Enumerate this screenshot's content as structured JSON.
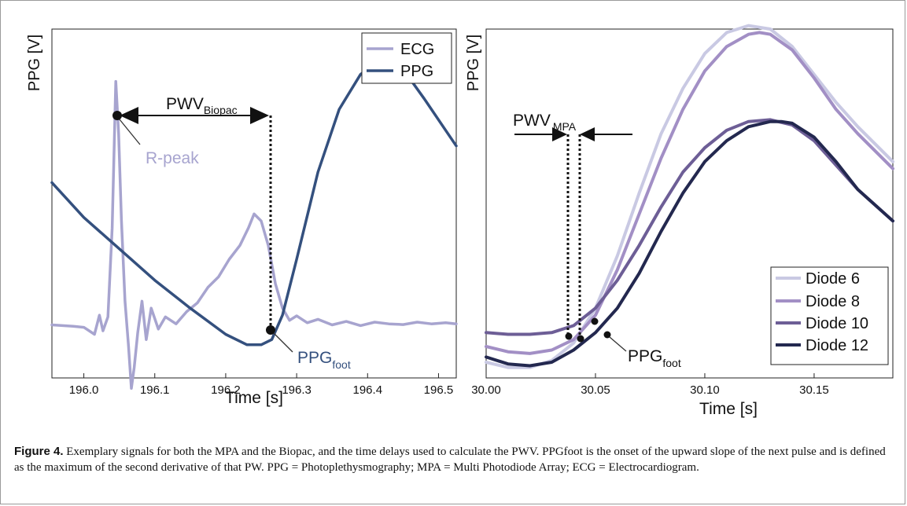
{
  "figure": {
    "caption_label": "Figure 4.",
    "caption_text": "Exemplary signals for both the MPA and the Biopac, and the time delays used to calculate the PWV. PPGfoot is the onset of the upward slope of the next pulse and is defined as the maximum of the second derivative of that PW. PPG = Photoplethysmography; MPA = Multi Photodiode Array; ECG = Electrocardiogram."
  },
  "chart_data": [
    {
      "type": "line",
      "ylabel": "PPG [V]",
      "xlabel": "Time [s]",
      "xlim": [
        195.955,
        196.525
      ],
      "ylim": [
        0,
        1
      ],
      "xticks": [
        "196.0",
        "196.1",
        "196.2",
        "196.3",
        "196.4",
        "196.5"
      ],
      "xtick_values": [
        196.0,
        196.1,
        196.2,
        196.3,
        196.4,
        196.5
      ],
      "legend_position": "top-right",
      "colors": {
        "ECG": "#a7a4cf",
        "PPG": "#34507e"
      },
      "series": [
        {
          "name": "ECG",
          "x": [
            195.955,
            195.985,
            196.0,
            196.015,
            196.022,
            196.027,
            196.034,
            196.04,
            196.045,
            196.049,
            196.053,
            196.058,
            196.063,
            196.067,
            196.071,
            196.076,
            196.082,
            196.088,
            196.095,
            196.105,
            196.115,
            196.13,
            196.145,
            196.16,
            196.175,
            196.19,
            196.205,
            196.22,
            196.232,
            196.24,
            196.25,
            196.26,
            196.27,
            196.28,
            196.29,
            196.3,
            196.315,
            196.33,
            196.35,
            196.37,
            196.39,
            196.41,
            196.43,
            196.45,
            196.47,
            196.49,
            196.51,
            196.525
          ],
          "y": [
            0.152,
            0.148,
            0.145,
            0.125,
            0.18,
            0.135,
            0.175,
            0.43,
            0.85,
            0.7,
            0.45,
            0.22,
            0.09,
            -0.03,
            0.03,
            0.13,
            0.22,
            0.11,
            0.2,
            0.14,
            0.175,
            0.155,
            0.19,
            0.215,
            0.26,
            0.29,
            0.34,
            0.38,
            0.43,
            0.47,
            0.45,
            0.38,
            0.27,
            0.2,
            0.165,
            0.178,
            0.158,
            0.168,
            0.152,
            0.162,
            0.15,
            0.16,
            0.155,
            0.153,
            0.16,
            0.155,
            0.158,
            0.155
          ]
        },
        {
          "name": "PPG",
          "x": [
            195.955,
            196.0,
            196.05,
            196.1,
            196.15,
            196.2,
            196.23,
            196.25,
            196.265,
            196.28,
            196.3,
            196.33,
            196.36,
            196.39,
            196.41,
            196.43,
            196.45,
            196.48,
            196.51,
            196.525
          ],
          "y": [
            0.56,
            0.46,
            0.37,
            0.28,
            0.2,
            0.125,
            0.095,
            0.095,
            0.11,
            0.18,
            0.34,
            0.59,
            0.77,
            0.87,
            0.9,
            0.905,
            0.885,
            0.8,
            0.71,
            0.665
          ]
        }
      ],
      "annotations": [
        {
          "text": "PWV",
          "subscript": "Biopac"
        },
        {
          "text": "R-peak",
          "color": "#a7a4cf"
        },
        {
          "text": "PPG",
          "subscript": "foot",
          "color": "#34507e"
        }
      ]
    },
    {
      "type": "line",
      "ylabel": "PPG [V]",
      "xlabel": "Time [s]",
      "xlim": [
        30.0,
        30.186
      ],
      "ylim": [
        0,
        1
      ],
      "xticks": [
        "30.00",
        "30.05",
        "30.10",
        "30.15"
      ],
      "xtick_values": [
        30.0,
        30.05,
        30.1,
        30.15
      ],
      "legend_position": "bottom-right",
      "colors": {
        "Diode 6": "#c9c9e3",
        "Diode 8": "#a28fc5",
        "Diode 10": "#6d5e96",
        "Diode 12": "#23284f"
      },
      "series": [
        {
          "name": "Diode 6",
          "x": [
            30.0,
            30.01,
            30.02,
            30.03,
            30.04,
            30.05,
            30.06,
            30.07,
            30.08,
            30.09,
            30.1,
            30.11,
            30.12,
            30.13,
            30.14,
            30.15,
            30.16,
            30.17,
            30.186
          ],
          "y": [
            0.045,
            0.03,
            0.03,
            0.05,
            0.1,
            0.2,
            0.35,
            0.53,
            0.7,
            0.83,
            0.93,
            0.99,
            1.01,
            1.0,
            0.95,
            0.87,
            0.79,
            0.72,
            0.62
          ]
        },
        {
          "name": "Diode 8",
          "x": [
            30.0,
            30.01,
            30.02,
            30.03,
            30.04,
            30.05,
            30.06,
            30.07,
            30.08,
            30.09,
            30.1,
            30.11,
            30.12,
            30.125,
            30.13,
            30.14,
            30.15,
            30.16,
            30.17,
            30.186
          ],
          "y": [
            0.09,
            0.075,
            0.07,
            0.08,
            0.11,
            0.18,
            0.31,
            0.47,
            0.63,
            0.77,
            0.88,
            0.95,
            0.985,
            0.99,
            0.985,
            0.94,
            0.86,
            0.77,
            0.7,
            0.6
          ]
        },
        {
          "name": "Diode 10",
          "x": [
            30.0,
            30.01,
            30.02,
            30.03,
            30.04,
            30.05,
            30.06,
            30.07,
            30.08,
            30.09,
            30.1,
            30.11,
            30.12,
            30.13,
            30.14,
            30.15,
            30.16,
            30.17,
            30.186
          ],
          "y": [
            0.13,
            0.125,
            0.125,
            0.13,
            0.15,
            0.2,
            0.28,
            0.38,
            0.49,
            0.59,
            0.66,
            0.71,
            0.735,
            0.74,
            0.725,
            0.68,
            0.61,
            0.54,
            0.45
          ]
        },
        {
          "name": "Diode 12",
          "x": [
            30.0,
            30.01,
            30.02,
            30.03,
            30.04,
            30.05,
            30.06,
            30.07,
            30.08,
            30.09,
            30.1,
            30.11,
            30.12,
            30.13,
            30.135,
            30.14,
            30.15,
            30.16,
            30.17,
            30.186
          ],
          "y": [
            0.06,
            0.04,
            0.035,
            0.045,
            0.08,
            0.13,
            0.2,
            0.3,
            0.42,
            0.53,
            0.62,
            0.68,
            0.72,
            0.735,
            0.735,
            0.73,
            0.69,
            0.62,
            0.54,
            0.45
          ]
        }
      ],
      "annotations": [
        {
          "text": "PWV",
          "subscript": "MPA"
        },
        {
          "text": "PPG",
          "subscript": "foot"
        }
      ]
    }
  ]
}
